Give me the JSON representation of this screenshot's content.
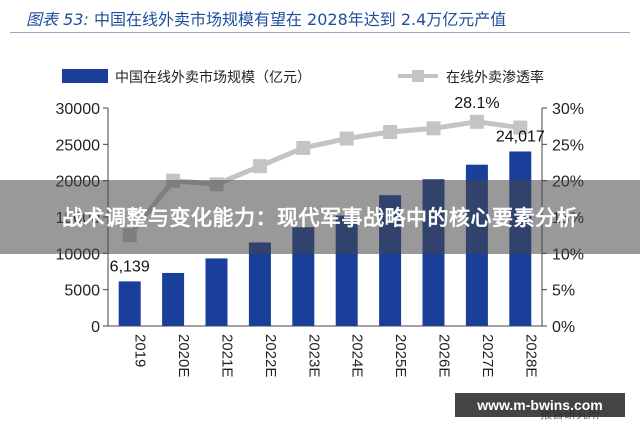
{
  "figure": {
    "title_prefix": "图表 53:",
    "title_rest": "中国在线外卖市场规模有望在 2028年达到 2.4万亿元产值"
  },
  "chart_data": {
    "type": "bar+line",
    "categories": [
      "2019",
      "2020E",
      "2021E",
      "2022E",
      "2023E",
      "2024E",
      "2025E",
      "2026E",
      "2027E",
      "2028E"
    ],
    "series": [
      {
        "name": "中国在线外卖市场规模（亿元）",
        "type": "bar",
        "axis": "left",
        "color": "#1a3f9b",
        "values": [
          6139,
          7300,
          9300,
          11500,
          13600,
          15200,
          18000,
          20200,
          22200,
          24017
        ]
      },
      {
        "name": "在线外卖渗透率",
        "type": "line",
        "axis": "right",
        "color": "#c4c4c4",
        "values": [
          12.5,
          20.0,
          19.5,
          22.0,
          24.5,
          25.8,
          26.7,
          27.2,
          28.1,
          27.3
        ]
      }
    ],
    "y_left": {
      "min": 0,
      "max": 30000,
      "ticks": [
        "0",
        "5000",
        "10000",
        "15000",
        "20000",
        "25000",
        "30000"
      ]
    },
    "y_right": {
      "min": 0,
      "max": 30,
      "ticks": [
        "0%",
        "5%",
        "10%",
        "15%",
        "20%",
        "25%",
        "30%"
      ]
    },
    "data_labels": [
      {
        "series": 0,
        "index": 0,
        "text": "6,139"
      },
      {
        "series": 0,
        "index": 9,
        "text": "24,017"
      },
      {
        "series": 1,
        "index": 8,
        "text": "28.1%"
      }
    ]
  },
  "overlay": {
    "banner_text": "战术调整与变化能力：现代军事战略中的核心要素分析",
    "watermark": "www.m-bwins.com",
    "source_text": "报告研究所"
  }
}
